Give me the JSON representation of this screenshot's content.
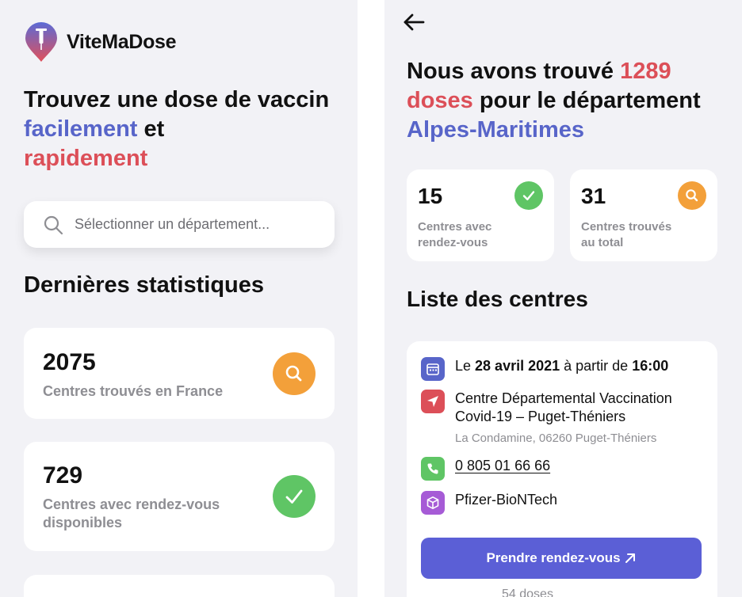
{
  "left": {
    "app_name": "ViteMaDose",
    "hero": {
      "part1": "Trouvez une dose de vaccin ",
      "highlight_blue": "facilement",
      "part2": " et ",
      "highlight_red": "rapidement"
    },
    "search": {
      "placeholder": "Sélectionner un département..."
    },
    "stats_title": "Dernières statistiques",
    "stats": [
      {
        "value": "2075",
        "label": "Centres trouvés en France",
        "icon": "search-icon"
      },
      {
        "value": "729",
        "label": "Centres avec rendez-vous disponibles",
        "icon": "check-icon"
      }
    ]
  },
  "right": {
    "result": {
      "part1": "Nous avons trouvé ",
      "highlight_red": "1289 doses",
      "part2": " pour le département ",
      "highlight_blue": "Alpes-Maritimes"
    },
    "summary": [
      {
        "value": "15",
        "label": "Centres avec rendez-vous",
        "icon": "check-icon"
      },
      {
        "value": "31",
        "label": "Centres trouvés au total",
        "icon": "search-icon"
      }
    ],
    "list_title": "Liste des centres",
    "centre": {
      "date_prefix": "Le ",
      "date": "28 avril 2021",
      "time_prefix": " à partir de ",
      "time": "16:00",
      "name": "Centre Départemental Vaccination Covid-19 – Puget-Théniers",
      "address": "La Condamine, 06260 Puget-Théniers",
      "phone": "0 805 01 66 66",
      "vaccine": "Pfizer-BioNTech",
      "button_label": "Prendre rendez-vous",
      "doses_note": "54 doses"
    }
  },
  "colors": {
    "accent_blue": "#5865c9",
    "accent_red": "#dc4f58",
    "success_green": "#5fc565",
    "warning_orange": "#f3a03a",
    "button_purple": "#5b5fd6",
    "vaccine_purple": "#a65bd6"
  }
}
